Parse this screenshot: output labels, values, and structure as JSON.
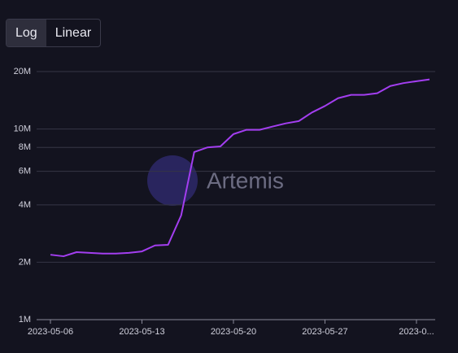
{
  "controls": {
    "scale_toggle": {
      "options": [
        "Log",
        "Linear"
      ],
      "active": "Log"
    }
  },
  "chart_data": {
    "type": "line",
    "log_scale": true,
    "grid": true,
    "watermark": "Artemis",
    "x": [
      "2023-05-06",
      "2023-05-07",
      "2023-05-08",
      "2023-05-09",
      "2023-05-10",
      "2023-05-11",
      "2023-05-12",
      "2023-05-13",
      "2023-05-14",
      "2023-05-15",
      "2023-05-16",
      "2023-05-17",
      "2023-05-18",
      "2023-05-19",
      "2023-05-20",
      "2023-05-21",
      "2023-05-22",
      "2023-05-23",
      "2023-05-24",
      "2023-05-25",
      "2023-05-26",
      "2023-05-27",
      "2023-05-28",
      "2023-05-29",
      "2023-05-30",
      "2023-05-31",
      "2023-06-01",
      "2023-06-02",
      "2023-06-03",
      "2023-06-04"
    ],
    "series": [
      {
        "color": "#a33ef0",
        "values": [
          2190000,
          2150000,
          2260000,
          2240000,
          2220000,
          2220000,
          2240000,
          2280000,
          2450000,
          2470000,
          3520000,
          7570000,
          8000000,
          8100000,
          9400000,
          9900000,
          9900000,
          10300000,
          10700000,
          11000000,
          12200000,
          13200000,
          14500000,
          15100000,
          15100000,
          15400000,
          16800000,
          17400000,
          17800000,
          18200000
        ]
      }
    ],
    "xlim": [
      "2023-05-06",
      "2023-06-04"
    ],
    "xticks": [
      "2023-05-06",
      "2023-05-13",
      "2023-05-20",
      "2023-05-27",
      {
        "value": "2023-06-03",
        "label": "2023-0..."
      }
    ],
    "ylim": [
      1000000,
      20000000
    ],
    "yticks": [
      {
        "value": 1000000,
        "label": "1M"
      },
      {
        "value": 2000000,
        "label": "2M"
      },
      {
        "value": 4000000,
        "label": "4M"
      },
      {
        "value": 6000000,
        "label": "6M"
      },
      {
        "value": 8000000,
        "label": "8M"
      },
      {
        "value": 10000000,
        "label": "10M"
      },
      {
        "value": 20000000,
        "label": "20M"
      }
    ]
  }
}
